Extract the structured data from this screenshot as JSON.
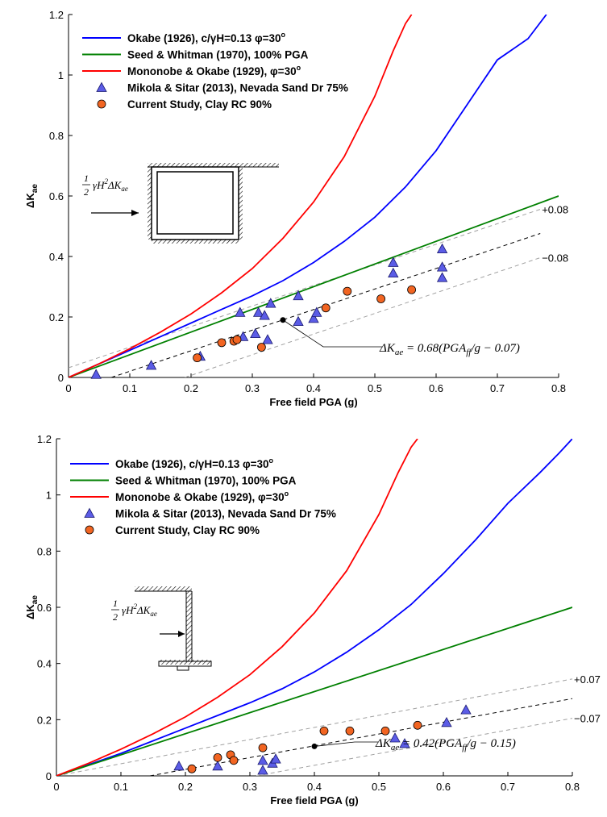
{
  "chart_data": [
    {
      "type": "scatter",
      "title": "",
      "xlabel": "Free field PGA (g)",
      "ylabel": "ΔK",
      "ylabel_sub": "ae",
      "xlim": [
        0,
        0.8
      ],
      "ylim": [
        0,
        1.2
      ],
      "xticks": [
        {
          "v": 0,
          "label": "0"
        },
        {
          "v": 0.1,
          "label": "0.1"
        },
        {
          "v": 0.2,
          "label": "0.2"
        },
        {
          "v": 0.3,
          "label": "0.3"
        },
        {
          "v": 0.4,
          "label": "0.4"
        },
        {
          "v": 0.5,
          "label": "0.5"
        },
        {
          "v": 0.6,
          "label": "0.6"
        },
        {
          "v": 0.7,
          "label": "0.7"
        },
        {
          "v": 0.8,
          "label": "0.8"
        }
      ],
      "yticks": [
        {
          "v": 0,
          "label": "0"
        },
        {
          "v": 0.2,
          "label": "0.2"
        },
        {
          "v": 0.4,
          "label": "0.4"
        },
        {
          "v": 0.6,
          "label": "0.6"
        },
        {
          "v": 0.8,
          "label": "0.8"
        },
        {
          "v": 1.0,
          "label": "1"
        },
        {
          "v": 1.2,
          "label": "1.2"
        }
      ],
      "legend_position": "top-left",
      "curves": [
        {
          "name": "Okabe (1926), c/γH=0.13  φ=30°",
          "legend_main": "Okabe (1926), c/γH=0.13  φ=30",
          "legend_sup": "o",
          "color": "#0000ff",
          "x": [
            0,
            0.05,
            0.1,
            0.15,
            0.2,
            0.25,
            0.3,
            0.35,
            0.4,
            0.45,
            0.5,
            0.55,
            0.6,
            0.65,
            0.7,
            0.75,
            0.78
          ],
          "y": [
            0,
            0.045,
            0.09,
            0.135,
            0.18,
            0.225,
            0.27,
            0.32,
            0.38,
            0.45,
            0.53,
            0.63,
            0.75,
            0.9,
            1.05,
            1.12,
            1.2
          ]
        },
        {
          "name": "Seed & Whitman (1970), 100% PGA",
          "legend_main": "Seed & Whitman (1970), 100% PGA",
          "legend_sup": "",
          "color": "#008000",
          "x": [
            0,
            0.8
          ],
          "y": [
            0,
            0.6
          ]
        },
        {
          "name": "Mononobe & Okabe (1929), φ=30°",
          "legend_main": "Mononobe & Okabe (1929), φ=30",
          "legend_sup": "o",
          "color": "#ff0000",
          "x": [
            0,
            0.05,
            0.1,
            0.15,
            0.2,
            0.25,
            0.3,
            0.35,
            0.4,
            0.45,
            0.5,
            0.53,
            0.55,
            0.56
          ],
          "y": [
            0,
            0.045,
            0.095,
            0.15,
            0.21,
            0.28,
            0.36,
            0.46,
            0.58,
            0.73,
            0.93,
            1.08,
            1.17,
            1.2
          ]
        }
      ],
      "scatter_series": [
        {
          "name": "Mikola & Sitar (2013), Nevada Sand Dr 75%",
          "marker": "triangle",
          "color": "#5b5ce6",
          "x": [
            0.045,
            0.135,
            0.215,
            0.28,
            0.285,
            0.305,
            0.31,
            0.32,
            0.325,
            0.33,
            0.375,
            0.375,
            0.4,
            0.405,
            0.53,
            0.53,
            0.61,
            0.61,
            0.61
          ],
          "y": [
            0.01,
            0.04,
            0.07,
            0.215,
            0.135,
            0.145,
            0.215,
            0.205,
            0.125,
            0.245,
            0.27,
            0.185,
            0.195,
            0.215,
            0.38,
            0.345,
            0.425,
            0.365,
            0.33
          ]
        },
        {
          "name": "Current Study, Clay RC 90%",
          "marker": "circle",
          "color": "#f26522",
          "x": [
            0.21,
            0.25,
            0.27,
            0.275,
            0.315,
            0.42,
            0.455,
            0.51,
            0.56
          ],
          "y": [
            0.065,
            0.115,
            0.12,
            0.125,
            0.1,
            0.23,
            0.285,
            0.26,
            0.29
          ]
        }
      ],
      "fit_lines": [
        {
          "name": "fit",
          "style": "dashed",
          "color": "#000000",
          "x": [
            0.07,
            0.77
          ],
          "y": [
            0,
            0.476
          ]
        },
        {
          "name": "upper",
          "style": "dashed",
          "color": "#a0a0a0",
          "x": [
            0,
            0.77
          ],
          "y": [
            0.032,
            0.556
          ]
        },
        {
          "name": "lower",
          "style": "dashed",
          "color": "#a0a0a0",
          "x": [
            0.19,
            0.77
          ],
          "y": [
            0,
            0.396
          ]
        }
      ],
      "band_labels": [
        {
          "text": "+0.08",
          "x": 0.77,
          "y": 0.556
        },
        {
          "text": "−0.08",
          "x": 0.77,
          "y": 0.396
        }
      ],
      "equation": {
        "lhs": "ΔK",
        "lhs_sub": "ae",
        "rhs": " = 0.68(PGA",
        "rhs_sub": "ff",
        "tail": "/g − 0.07)",
        "point_x": 0.35,
        "point_y": 0.19
      },
      "diagram": {
        "fraction_num": "1",
        "fraction_den": "2",
        "expr": "γH",
        "expr_sup": "2",
        "expr2": "ΔK",
        "expr2_sub": "ae"
      }
    },
    {
      "type": "scatter",
      "title": "",
      "xlabel": "Free field PGA (g)",
      "ylabel": "ΔK",
      "ylabel_sub": "ae",
      "xlim": [
        0,
        0.8
      ],
      "ylim": [
        0,
        1.2
      ],
      "xticks": [
        {
          "v": 0,
          "label": "0"
        },
        {
          "v": 0.1,
          "label": "0.1"
        },
        {
          "v": 0.2,
          "label": "0.2"
        },
        {
          "v": 0.3,
          "label": "0.3"
        },
        {
          "v": 0.4,
          "label": "0.4"
        },
        {
          "v": 0.5,
          "label": "0.5"
        },
        {
          "v": 0.6,
          "label": "0.6"
        },
        {
          "v": 0.7,
          "label": "0.7"
        },
        {
          "v": 0.8,
          "label": "0.8"
        }
      ],
      "yticks": [
        {
          "v": 0,
          "label": "0"
        },
        {
          "v": 0.2,
          "label": "0.2"
        },
        {
          "v": 0.4,
          "label": "0.4"
        },
        {
          "v": 0.6,
          "label": "0.6"
        },
        {
          "v": 0.8,
          "label": "0.8"
        },
        {
          "v": 1.0,
          "label": "1"
        },
        {
          "v": 1.2,
          "label": "1.2"
        }
      ],
      "legend_position": "top-left",
      "curves": [
        {
          "name": "Okabe (1926), c/γH=0.13  φ=30°",
          "legend_main": "Okabe (1926), c/γH=0.13  φ=30",
          "legend_sup": "o",
          "color": "#0000ff",
          "x": [
            0,
            0.05,
            0.1,
            0.15,
            0.2,
            0.25,
            0.3,
            0.35,
            0.4,
            0.45,
            0.5,
            0.55,
            0.6,
            0.65,
            0.7,
            0.75,
            0.78,
            0.8
          ],
          "y": [
            0,
            0.04,
            0.08,
            0.125,
            0.17,
            0.215,
            0.26,
            0.31,
            0.37,
            0.44,
            0.52,
            0.61,
            0.72,
            0.84,
            0.97,
            1.08,
            1.15,
            1.2
          ]
        },
        {
          "name": "Seed & Whitman (1970), 100% PGA",
          "legend_main": "Seed & Whitman (1970), 100% PGA",
          "legend_sup": "",
          "color": "#008000",
          "x": [
            0,
            0.8
          ],
          "y": [
            0,
            0.6
          ]
        },
        {
          "name": "Mononobe & Okabe (1929), φ=30°",
          "legend_main": "Mononobe & Okabe (1929), φ=30",
          "legend_sup": "o",
          "color": "#ff0000",
          "x": [
            0,
            0.05,
            0.1,
            0.15,
            0.2,
            0.25,
            0.3,
            0.35,
            0.4,
            0.45,
            0.5,
            0.53,
            0.55,
            0.56
          ],
          "y": [
            0,
            0.045,
            0.095,
            0.15,
            0.21,
            0.28,
            0.36,
            0.46,
            0.58,
            0.73,
            0.93,
            1.08,
            1.17,
            1.2
          ]
        }
      ],
      "scatter_series": [
        {
          "name": "Mikola & Sitar (2013), Nevada Sand Dr 75%",
          "marker": "triangle",
          "color": "#5b5ce6",
          "x": [
            0.19,
            0.25,
            0.32,
            0.32,
            0.335,
            0.34,
            0.525,
            0.54,
            0.605,
            0.635
          ],
          "y": [
            0.035,
            0.035,
            0.055,
            0.02,
            0.045,
            0.06,
            0.135,
            0.115,
            0.19,
            0.235
          ]
        },
        {
          "name": "Current Study, Clay RC 90%",
          "marker": "circle",
          "color": "#f26522",
          "x": [
            0.21,
            0.25,
            0.27,
            0.275,
            0.32,
            0.415,
            0.455,
            0.51,
            0.56
          ],
          "y": [
            0.025,
            0.065,
            0.075,
            0.055,
            0.1,
            0.16,
            0.16,
            0.16,
            0.18
          ]
        }
      ],
      "fit_lines": [
        {
          "name": "fit",
          "style": "dashed",
          "color": "#000000",
          "x": [
            0.145,
            0.8
          ],
          "y": [
            0,
            0.275
          ]
        },
        {
          "name": "upper",
          "style": "dashed",
          "color": "#a0a0a0",
          "x": [
            0,
            0.8
          ],
          "y": [
            0.0,
            0.345
          ]
        },
        {
          "name": "lower",
          "style": "dashed",
          "color": "#a0a0a0",
          "x": [
            0.31,
            0.8
          ],
          "y": [
            0,
            0.205
          ]
        }
      ],
      "band_labels": [
        {
          "text": "+0.07",
          "x": 0.8,
          "y": 0.345
        },
        {
          "text": "−0.07",
          "x": 0.8,
          "y": 0.205
        }
      ],
      "equation": {
        "lhs": "ΔK",
        "lhs_sub": "ae",
        "rhs": " = 0.42(PGA",
        "rhs_sub": "ff",
        "tail": "/g − 0.15)",
        "point_x": 0.4,
        "point_y": 0.105
      },
      "diagram": {
        "fraction_num": "1",
        "fraction_den": "2",
        "expr": "γH",
        "expr_sup": "2",
        "expr2": "ΔK",
        "expr2_sub": "ae"
      }
    }
  ]
}
